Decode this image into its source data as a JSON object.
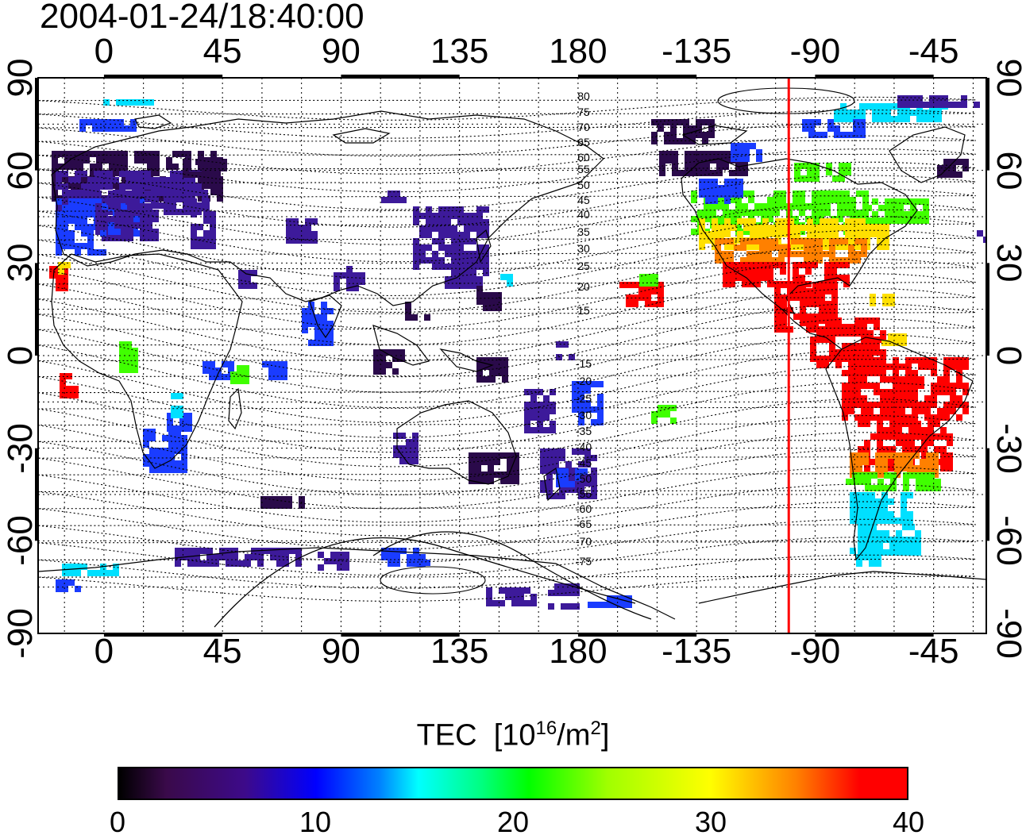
{
  "timestamp": "2004-01-24/18:40:00",
  "lon_ticks": [
    "0",
    "45",
    "90",
    "135",
    "180",
    "-135",
    "-90",
    "-45"
  ],
  "lat_ticks": [
    "90",
    "60",
    "30",
    "0",
    "-30",
    "-60",
    "-90"
  ],
  "mlat_contour_labels": [
    "80",
    "75",
    "70",
    "65",
    "60",
    "55",
    "50",
    "45",
    "40",
    "35",
    "30",
    "25",
    "20",
    "15",
    "-15",
    "-20",
    "-25",
    "-30",
    "-35",
    "-40",
    "-45",
    "-50",
    "-55",
    "-60",
    "-65",
    "-70",
    "-75"
  ],
  "marker_longitude": -100,
  "colorbar": {
    "title_main": "TEC",
    "title_unit_open": "[10",
    "title_exp": "16",
    "title_unit_mid": "/m",
    "title_exp2": "2",
    "title_unit_close": "]",
    "ticks": [
      "0",
      "10",
      "20",
      "30",
      "40"
    ],
    "min": 0,
    "max": 40
  },
  "colors": {
    "marker_line": "#ff0000",
    "grid": "#000000",
    "low": "#2a0a4a",
    "mid_low": "#3d1a9a",
    "blue": "#1a3cff",
    "cyan": "#00e0ff",
    "green": "#40ff00",
    "yellow": "#ffe000",
    "orange": "#ff8000",
    "red": "#ff0000"
  }
}
